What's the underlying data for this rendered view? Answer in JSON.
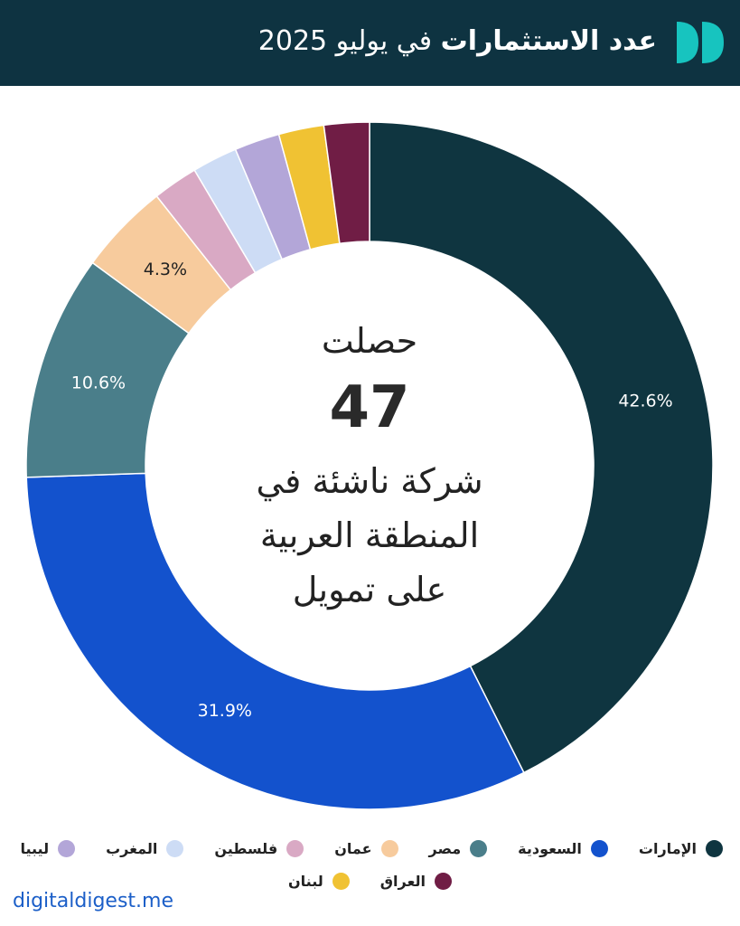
{
  "header": {
    "title_bold": "عدد الاستثمارات",
    "title_rest": "في يوليو 2025",
    "accent_color": "#17c4bf"
  },
  "center": {
    "line1": "حصلت",
    "number": "47",
    "line2": "شركة ناشئة في",
    "line3": "المنطقة العربية",
    "line4": "على تمويل"
  },
  "footer": {
    "site": "digitaldigest.me"
  },
  "chart_data": {
    "type": "pie",
    "donut": true,
    "slices": [
      {
        "label": "الإمارات",
        "value": 42.6,
        "display": "42.6%",
        "color": "#0f3540"
      },
      {
        "label": "السعودية",
        "value": 31.9,
        "display": "31.9%",
        "color": "#1352cd"
      },
      {
        "label": "مصر",
        "value": 10.6,
        "display": "10.6%",
        "color": "#4a7e8a"
      },
      {
        "label": "عمان",
        "value": 4.3,
        "display": "4.3%",
        "color": "#f7cb9d"
      },
      {
        "label": "فلسطين",
        "value": 2.13,
        "display": "",
        "color": "#d9a9c4"
      },
      {
        "label": "المغرب",
        "value": 2.13,
        "display": "",
        "color": "#cddcf5"
      },
      {
        "label": "ليبيا",
        "value": 2.13,
        "display": "",
        "color": "#b3a6d8"
      },
      {
        "label": "لبنان",
        "value": 2.13,
        "display": "",
        "color": "#f0c233"
      },
      {
        "label": "العراق",
        "value": 2.13,
        "display": "",
        "color": "#701d45"
      }
    ],
    "legend_rows": [
      [
        "الإمارات",
        "السعودية",
        "مصر",
        "عمان",
        "فلسطين",
        "المغرب",
        "ليبيا"
      ],
      [
        "العراق",
        "لبنان"
      ]
    ]
  }
}
